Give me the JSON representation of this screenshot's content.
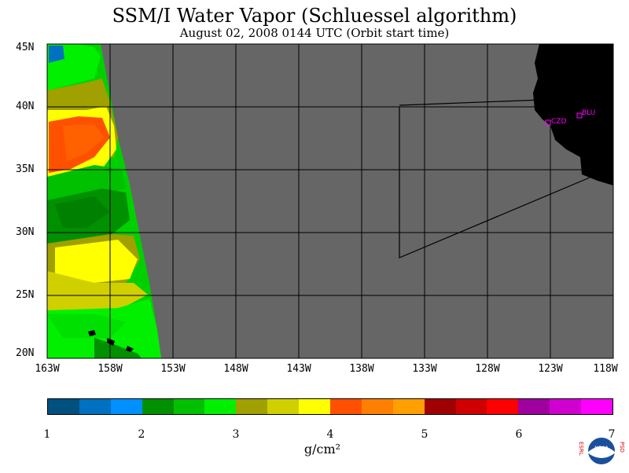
{
  "title": "SSM/I Water Vapor (Schluessel algorithm)",
  "subtitle": "August 02, 2008  0144 UTC  (Orbit start time)",
  "lat_labels": [
    "45N",
    "40N",
    "35N",
    "30N",
    "25N",
    "20N"
  ],
  "lon_labels": [
    "163W",
    "158W",
    "153W",
    "148W",
    "143W",
    "138W",
    "133W",
    "128W",
    "123W",
    "118W"
  ],
  "stations": [
    {
      "code": "CZD",
      "lon": -123.0,
      "lat": 38.6
    },
    {
      "code": "BLU",
      "lon": -120.7,
      "lat": 39.3
    }
  ],
  "colorbar": {
    "ticks": [
      "1",
      "2",
      "3",
      "4",
      "5",
      "6",
      "7"
    ],
    "units": "g/cm²",
    "colors": [
      "#005080",
      "#0070c0",
      "#0090ff",
      "#009000",
      "#00c000",
      "#00f000",
      "#a0a000",
      "#d0d000",
      "#ffff00",
      "#ff5000",
      "#ff8000",
      "#ffa000",
      "#a00000",
      "#d00000",
      "#ff0000",
      "#a000a0",
      "#d000d0",
      "#ff00ff"
    ]
  },
  "logo": {
    "left_text": "ESRL",
    "right_text": "PSD",
    "center_text": "NOAA"
  },
  "colors": {
    "ocean_nodata": "#666666",
    "land": "#000000",
    "station": "#ff00ff",
    "grid": "#000000"
  }
}
